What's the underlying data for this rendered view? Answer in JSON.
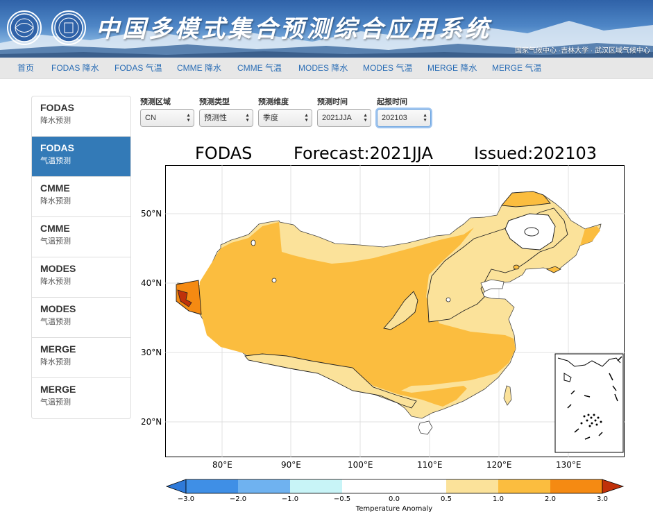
{
  "header": {
    "title": "中国多模式集合预测综合应用系统",
    "affiliations": "国家气候中心 ·吉林大学 ·  武汉区域气候中心"
  },
  "nav": [
    "首页",
    "FODAS 降水",
    "FODAS 气温",
    "CMME 降水",
    "CMME 气温",
    "MODES 降水",
    "MODES 气温",
    "MERGE 降水",
    "MERGE 气温"
  ],
  "sidebar": [
    {
      "line1": "FODAS",
      "line2": "降水预测",
      "active": false
    },
    {
      "line1": "FODAS",
      "line2": "气温预测",
      "active": true
    },
    {
      "line1": "CMME",
      "line2": "降水预测",
      "active": false
    },
    {
      "line1": "CMME",
      "line2": "气温预测",
      "active": false
    },
    {
      "line1": "MODES",
      "line2": "降水预测",
      "active": false
    },
    {
      "line1": "MODES",
      "line2": "气温预测",
      "active": false
    },
    {
      "line1": "MERGE",
      "line2": "降水预测",
      "active": false
    },
    {
      "line1": "MERGE",
      "line2": "气温预测",
      "active": false
    }
  ],
  "controls": [
    {
      "label": "预测区域",
      "value": "CN"
    },
    {
      "label": "预测类型",
      "value": "预测性"
    },
    {
      "label": "预测维度",
      "value": "季度"
    },
    {
      "label": "预测时间",
      "value": "2021JJA"
    },
    {
      "label": "起报时间",
      "value": "202103"
    }
  ],
  "map": {
    "title_model": "FODAS",
    "title_forecast": "Forecast:2021JJA",
    "title_issued": "Issued:202103",
    "lat_labels": [
      "50°N",
      "40°N",
      "30°N",
      "20°N"
    ],
    "lon_labels": [
      "80°E",
      "90°E",
      "100°E",
      "110°E",
      "120°E",
      "130°E"
    ],
    "colorbar": {
      "ticks": [
        "−3.0",
        "−2.0",
        "−1.0",
        "−0.5",
        "0.0",
        "0.5",
        "1.0",
        "2.0",
        "3.0"
      ],
      "colors": [
        "#3f8fe6",
        "#6fb2f0",
        "#c8f4f7",
        "#ffffff",
        "#ffffff",
        "#fbe29a",
        "#fbbd3f",
        "#f58a12"
      ],
      "under_color": "#2f7ad9",
      "over_color": "#c0310a",
      "label": "Temperature Anomaly"
    }
  }
}
